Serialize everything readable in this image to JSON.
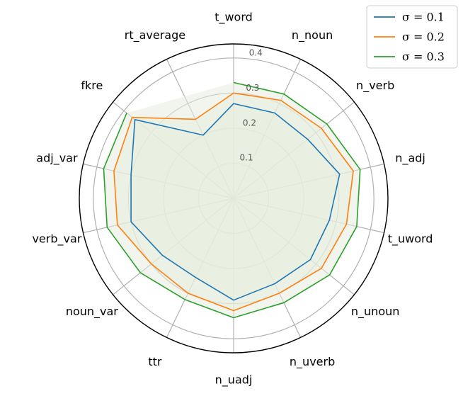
{
  "chart_data": {
    "type": "radar",
    "categories": [
      "t_word",
      "n_noun",
      "n_verb",
      "n_adj",
      "t_uword",
      "n_unoun",
      "n_uverb",
      "n_uadj",
      "ttr",
      "noun_var",
      "verb_var",
      "adj_var",
      "fkre",
      "rt_average"
    ],
    "series": [
      {
        "name": "σ = 0.1",
        "color": "#1f77b4",
        "values": [
          0.27,
          0.27,
          0.27,
          0.31,
          0.28,
          0.28,
          0.27,
          0.29,
          0.25,
          0.26,
          0.3,
          0.3,
          0.36,
          0.2
        ]
      },
      {
        "name": "σ = 0.2",
        "color": "#ff7f0e",
        "values": [
          0.3,
          0.31,
          0.32,
          0.35,
          0.33,
          0.32,
          0.3,
          0.32,
          0.3,
          0.3,
          0.34,
          0.35,
          0.37,
          0.25
        ]
      },
      {
        "name": "σ = 0.3",
        "color": "#2ca02c",
        "values": [
          0.33,
          0.33,
          0.34,
          0.37,
          0.36,
          0.35,
          0.33,
          0.34,
          0.32,
          0.34,
          0.37,
          0.38,
          0.39,
          null
        ]
      }
    ],
    "rticks": [
      "0.1",
      "0.2",
      "0.3",
      "0.4"
    ],
    "rlim": [
      0,
      0.44
    ],
    "grid": true,
    "legend_position": "top-right",
    "fill_color": "#e8ecdf"
  }
}
